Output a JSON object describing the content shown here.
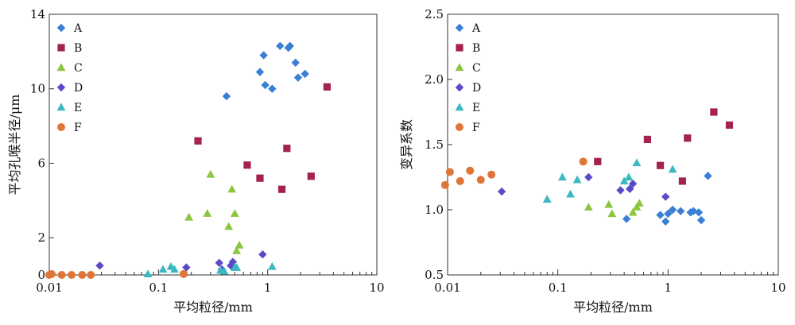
{
  "chart_data": [
    {
      "type": "scatter",
      "title": "",
      "xlabel": "平均粒径/mm",
      "ylabel": "平均孔喉半径/μm",
      "xscale": "log",
      "xlim": [
        0.01,
        10
      ],
      "ylim": [
        0,
        14
      ],
      "xticks": [
        0.01,
        0.1,
        1,
        10
      ],
      "xtick_labels": [
        "0.01",
        "0.1",
        "1",
        "10"
      ],
      "yticks": [
        0,
        2,
        6,
        10,
        14
      ],
      "ytick_labels": [
        "0",
        "2",
        "6",
        "10",
        "14"
      ],
      "legend": "top-left",
      "grid": false,
      "series": [
        {
          "name": "A",
          "marker": "diamond",
          "color": "#3a7fd5",
          "x": [
            0.42,
            0.85,
            0.92,
            0.95,
            1.1,
            1.3,
            1.55,
            1.6,
            1.8,
            1.9,
            2.2
          ],
          "y": [
            9.6,
            10.9,
            11.8,
            10.2,
            10.0,
            12.3,
            12.2,
            12.3,
            11.4,
            10.6,
            10.8
          ]
        },
        {
          "name": "B",
          "marker": "square",
          "color": "#a3234a",
          "x": [
            0.23,
            0.65,
            0.85,
            1.35,
            1.5,
            2.5,
            3.5
          ],
          "y": [
            7.2,
            5.9,
            5.2,
            4.6,
            6.8,
            5.3,
            10.1
          ]
        },
        {
          "name": "C",
          "marker": "triangle",
          "color": "#8cc63f",
          "x": [
            0.19,
            0.28,
            0.3,
            0.44,
            0.47,
            0.5,
            0.52,
            0.55
          ],
          "y": [
            3.1,
            3.3,
            5.4,
            2.6,
            4.6,
            3.3,
            1.3,
            1.6
          ]
        },
        {
          "name": "D",
          "marker": "diamond",
          "color": "#5b49c7",
          "x": [
            0.029,
            0.18,
            0.36,
            0.38,
            0.46,
            0.48,
            0.9
          ],
          "y": [
            0.5,
            0.4,
            0.65,
            0.3,
            0.5,
            0.7,
            1.1
          ]
        },
        {
          "name": "E",
          "marker": "triangle",
          "color": "#3db8c0",
          "x": [
            0.08,
            0.11,
            0.13,
            0.14,
            0.37,
            0.4,
            0.5,
            0.52,
            1.1
          ],
          "y": [
            0.05,
            0.3,
            0.45,
            0.3,
            0.25,
            0.2,
            0.4,
            0.4,
            0.45
          ]
        },
        {
          "name": "F",
          "marker": "circle",
          "color": "#e0753a",
          "x": [
            0.01,
            0.0105,
            0.013,
            0.016,
            0.02,
            0.024,
            0.17
          ],
          "y": [
            0.0,
            0.05,
            0.0,
            0.0,
            0.0,
            0.0,
            0.05
          ]
        }
      ]
    },
    {
      "type": "scatter",
      "title": "",
      "xlabel": "平均粒径/mm",
      "ylabel": "变异系数",
      "xscale": "log",
      "xlim": [
        0.01,
        10
      ],
      "ylim": [
        0.5,
        2.5
      ],
      "xticks": [
        0.01,
        0.1,
        1,
        10
      ],
      "xtick_labels": [
        "0.01",
        "0.1",
        "1",
        "10"
      ],
      "yticks": [
        0.5,
        1.0,
        1.5,
        2.0,
        2.5
      ],
      "ytick_labels": [
        "0.5",
        "1.0",
        "1.5",
        "2.0",
        "2.5"
      ],
      "legend": "top-left",
      "grid": false,
      "series": [
        {
          "name": "A",
          "marker": "diamond",
          "color": "#3a7fd5",
          "x": [
            0.42,
            0.85,
            0.95,
            1.0,
            1.1,
            1.3,
            1.6,
            1.7,
            1.9,
            2.0,
            2.3
          ],
          "y": [
            0.93,
            0.96,
            0.91,
            0.97,
            1.0,
            0.99,
            0.98,
            0.99,
            0.98,
            0.92,
            1.26
          ]
        },
        {
          "name": "B",
          "marker": "square",
          "color": "#a3234a",
          "x": [
            0.23,
            0.65,
            0.85,
            1.35,
            1.5,
            2.6,
            3.6
          ],
          "y": [
            1.37,
            1.54,
            1.34,
            1.22,
            1.55,
            1.75,
            1.65
          ]
        },
        {
          "name": "C",
          "marker": "triangle",
          "color": "#8cc63f",
          "x": [
            0.19,
            0.29,
            0.31,
            0.48,
            0.52,
            0.55
          ],
          "y": [
            1.02,
            1.04,
            0.97,
            0.98,
            1.02,
            1.05
          ]
        },
        {
          "name": "D",
          "marker": "diamond",
          "color": "#5b49c7",
          "x": [
            0.031,
            0.19,
            0.37,
            0.45,
            0.48,
            0.95
          ],
          "y": [
            1.14,
            1.25,
            1.15,
            1.16,
            1.2,
            1.1
          ]
        },
        {
          "name": "E",
          "marker": "triangle",
          "color": "#3db8c0",
          "x": [
            0.08,
            0.11,
            0.13,
            0.15,
            0.4,
            0.44,
            0.52,
            1.1
          ],
          "y": [
            1.08,
            1.25,
            1.12,
            1.23,
            1.22,
            1.25,
            1.36,
            1.31
          ]
        },
        {
          "name": "F",
          "marker": "circle",
          "color": "#e0753a",
          "x": [
            0.0095,
            0.0105,
            0.013,
            0.016,
            0.02,
            0.025,
            0.17
          ],
          "y": [
            1.19,
            1.29,
            1.22,
            1.3,
            1.23,
            1.27,
            1.37
          ]
        }
      ]
    }
  ]
}
